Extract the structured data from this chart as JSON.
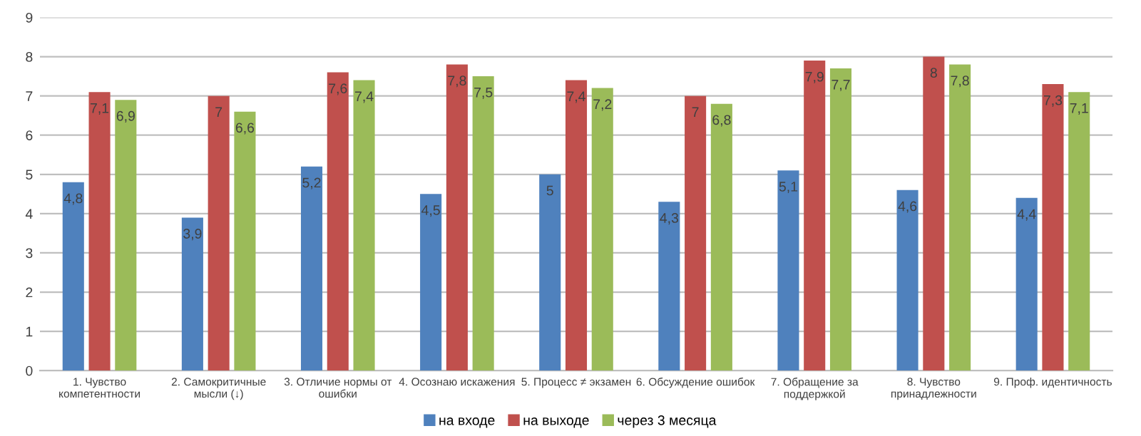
{
  "chart_data": {
    "type": "bar",
    "categories": [
      "1. Чувство\nкомпетентности",
      "2. Самокритичные\nмысли (↓)",
      "3. Отличие нормы от\nошибки",
      "4. Осознаю искажения",
      "5. Процесс ≠ экзамен",
      "6. Обсуждение ошибок",
      "7. Обращение за\nподдержкой",
      "8. Чувство\nпринадлежности",
      "9. Проф. идентичность"
    ],
    "series": [
      {
        "name": "на входе",
        "color": "#4f81bd",
        "values": [
          4.8,
          3.9,
          5.2,
          4.5,
          5,
          4.3,
          5.1,
          4.6,
          4.4
        ],
        "value_labels": [
          "4,8",
          "3,9",
          "5,2",
          "4,5",
          "5",
          "4,3",
          "5,1",
          "4,6",
          "4,4"
        ]
      },
      {
        "name": "на выходе",
        "color": "#c0504d",
        "values": [
          7.1,
          7,
          7.6,
          7.8,
          7.4,
          7,
          7.9,
          8,
          7.3
        ],
        "value_labels": [
          "7,1",
          "7",
          "7,6",
          "7,8",
          "7,4",
          "7",
          "7,9",
          "8",
          "7,3"
        ]
      },
      {
        "name": "через 3 месяца",
        "color": "#9bbb59",
        "values": [
          6.9,
          6.6,
          7.4,
          7.5,
          7.2,
          6.8,
          7.7,
          7.8,
          7.1
        ],
        "value_labels": [
          "6,9",
          "6,6",
          "7,4",
          "7,5",
          "7,2",
          "6,8",
          "7,7",
          "7,8",
          "7,1"
        ]
      }
    ],
    "ylim": [
      0,
      9
    ],
    "yticks": [
      0,
      1,
      2,
      3,
      4,
      5,
      6,
      7,
      8,
      9
    ],
    "grid": "y",
    "legend": "bottom"
  }
}
